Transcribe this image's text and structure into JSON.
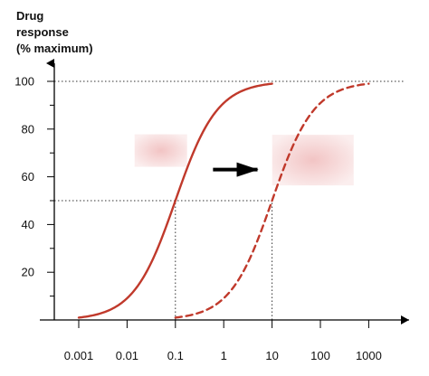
{
  "chart_data": {
    "type": "line",
    "ylabel_lines": [
      "Drug",
      "response",
      "(% maximum)"
    ],
    "xlabel": "",
    "x_scale": "log",
    "x_ticks": [
      "0.001",
      "0.01",
      "0.1",
      "1",
      "10",
      "100",
      "1000"
    ],
    "x_tick_values": [
      0.001,
      0.01,
      0.1,
      1,
      10,
      100,
      1000
    ],
    "y_ticks": [
      "20",
      "40",
      "60",
      "80",
      "100"
    ],
    "y_tick_values": [
      20,
      40,
      60,
      80,
      100
    ],
    "xlim": [
      0.0005,
      3000
    ],
    "ylim": [
      0,
      100
    ],
    "grid": false,
    "series": [
      {
        "style": "solid",
        "color": "#c0392b",
        "ec50": 0.1,
        "hill": 1,
        "x_range": [
          0.001,
          10
        ]
      },
      {
        "style": "dashed",
        "color": "#c0392b",
        "ec50": 10,
        "hill": 1,
        "x_range": [
          0.1,
          1000
        ]
      }
    ],
    "reference_lines": [
      {
        "y": 100,
        "x_from": 0.0005,
        "x_to": 3000
      },
      {
        "y": 50,
        "x_from": 0.0005,
        "x_to": 10
      },
      {
        "x": 0.1,
        "y_from": 0,
        "y_to": 50
      },
      {
        "x": 10,
        "y_from": 0,
        "y_to": 50
      }
    ],
    "arrow": {
      "from_x": 0.6,
      "to_x": 5,
      "y": 63,
      "color": "#000000"
    },
    "redacted_labels": [
      {
        "x_center": 0.05,
        "y_center": 71
      },
      {
        "x_center": 70,
        "y_center": 67
      }
    ],
    "redacted_fill": "#f7d6d6"
  }
}
